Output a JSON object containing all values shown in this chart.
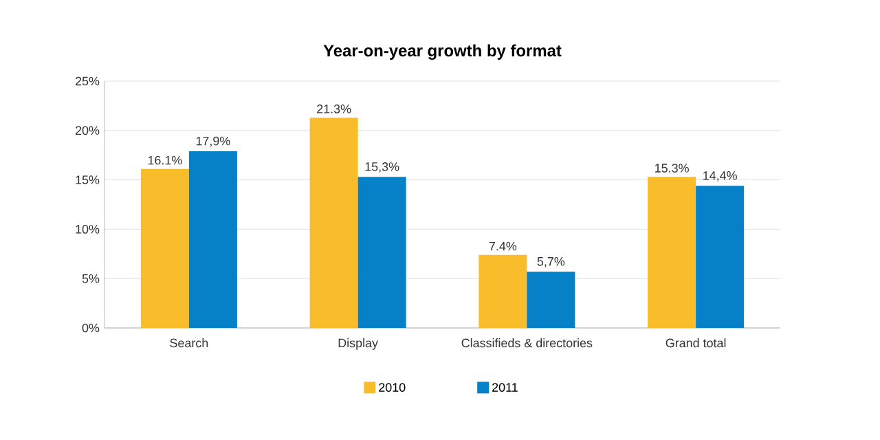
{
  "chart_data": {
    "type": "bar",
    "title": "Year-on-year growth by format",
    "categories": [
      "Search",
      "Display",
      "Classifieds & directories",
      "Grand total"
    ],
    "series": [
      {
        "name": "2010",
        "color": "#f9bd2b",
        "values": [
          16.1,
          21.3,
          7.4,
          15.3
        ],
        "value_labels": [
          "16.1%",
          "21.3%",
          "7.4%",
          "15.3%"
        ]
      },
      {
        "name": "2011",
        "color": "#0680c7",
        "values": [
          17.9,
          15.3,
          5.7,
          14.4
        ],
        "value_labels": [
          "17,9%",
          "15,3%",
          "5,7%",
          "14,4%"
        ]
      }
    ],
    "ylim": [
      0,
      25
    ],
    "yticks": [
      {
        "value": 0,
        "label": "0%"
      },
      {
        "value": 5,
        "label": "5%"
      },
      {
        "value": 10,
        "label": "10%"
      },
      {
        "value": 15,
        "label": "15%"
      },
      {
        "value": 20,
        "label": "20%"
      },
      {
        "value": 25,
        "label": "25%"
      }
    ],
    "grid": "y",
    "legend": "bottom"
  }
}
